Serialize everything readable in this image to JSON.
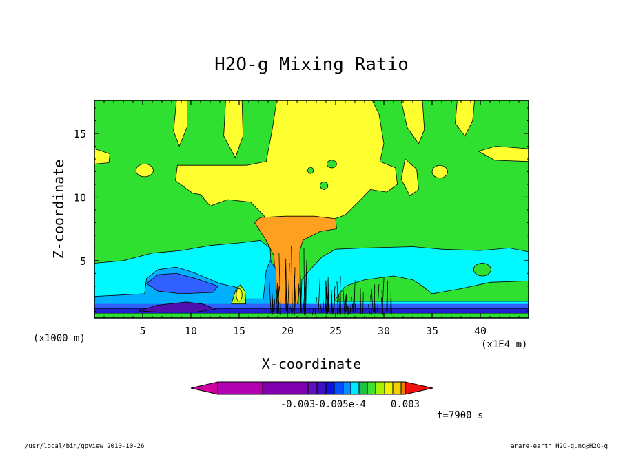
{
  "chart_data": {
    "type": "heatmap",
    "title": "H2O-g Mixing Ratio",
    "xlabel": "X-coordinate",
    "ylabel": "Z-coordinate",
    "x_unit_left": "(x1000 m)",
    "x_unit_right": "(x1E4 m)",
    "xlim": [
      0,
      45
    ],
    "ylim": [
      0.5,
      17.6
    ],
    "x_ticks": [
      5,
      10,
      15,
      20,
      25,
      30,
      35,
      40
    ],
    "x_tick_labels": [
      "5",
      "10",
      "15",
      "20",
      "25",
      "30",
      "35",
      "40"
    ],
    "y_ticks": [
      5,
      10,
      15
    ],
    "y_tick_labels": [
      "5",
      "10",
      "15"
    ],
    "colorbar_labels": [
      "-0.003",
      "-0.005e-4",
      "0.003"
    ],
    "colorbar_colors": [
      "#d000a0",
      "#b000b0",
      "#8000b0",
      "#6010c0",
      "#4010c0",
      "#1010e0",
      "#0050ff",
      "#0090ff",
      "#00e8ff",
      "#20c040",
      "#40e030",
      "#a8f000",
      "#f0f000",
      "#f0d000",
      "#f0b020",
      "#f08000",
      "#f01010"
    ],
    "field_colors": {
      "background": "#30e030",
      "yellow": "#ffff30",
      "orange": "#ffa020",
      "cyan": "#00f8ff",
      "light_blue": "#00b0ff",
      "blue": "#3060ff",
      "dark_blue": "#2020d0",
      "purple": "#5010b0",
      "pale_green": "#b0ff20"
    },
    "annotation_time": "t=7900 s",
    "footer_left": "/usr/local/bin/gpview  2010-10-26",
    "footer_right": "arare-earth_H2O-g.nc@H2O-g"
  }
}
